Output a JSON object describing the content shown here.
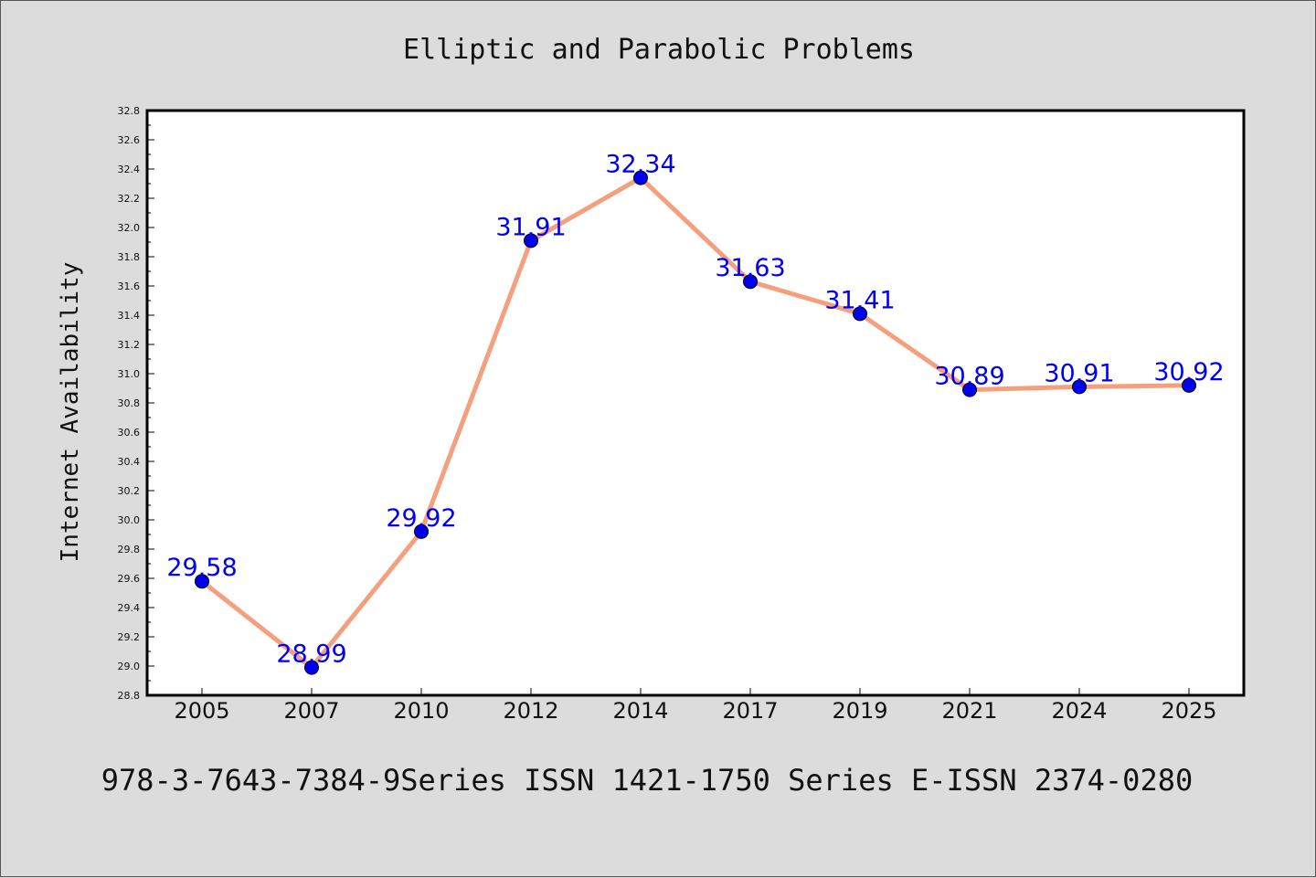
{
  "chart_data": {
    "type": "line",
    "title": "Elliptic and Parabolic Problems",
    "ylabel": "Internet Availability",
    "xlabel": "",
    "categories": [
      "2005",
      "2007",
      "2010",
      "2012",
      "2014",
      "2017",
      "2019",
      "2021",
      "2024",
      "2025"
    ],
    "series": [
      {
        "values": [
          29.58,
          28.99,
          29.92,
          31.91,
          32.34,
          31.63,
          31.41,
          30.89,
          30.91,
          30.92
        ]
      }
    ],
    "data_labels": [
      "29.58",
      "28.99",
      "29.92",
      "31.91",
      "32.34",
      "31.63",
      "31.41",
      "30.89",
      "30.91",
      "30.92"
    ],
    "ylim": [
      28.8,
      32.8
    ],
    "yticks": [
      "28.8",
      "29.0",
      "29.2",
      "29.4",
      "29.6",
      "29.8",
      "30.0",
      "30.2",
      "30.4",
      "30.6",
      "30.8",
      "31.0",
      "31.2",
      "31.4",
      "31.6",
      "31.8",
      "32.0",
      "32.2",
      "32.4",
      "32.6",
      "32.8"
    ],
    "grid": false,
    "line_color": "#f4a07e",
    "marker_color": "#0000ee",
    "label_color": "#0000ee"
  },
  "footer": "978-3-7643-7384-9Series ISSN 1421-1750 Series E-ISSN 2374-0280"
}
